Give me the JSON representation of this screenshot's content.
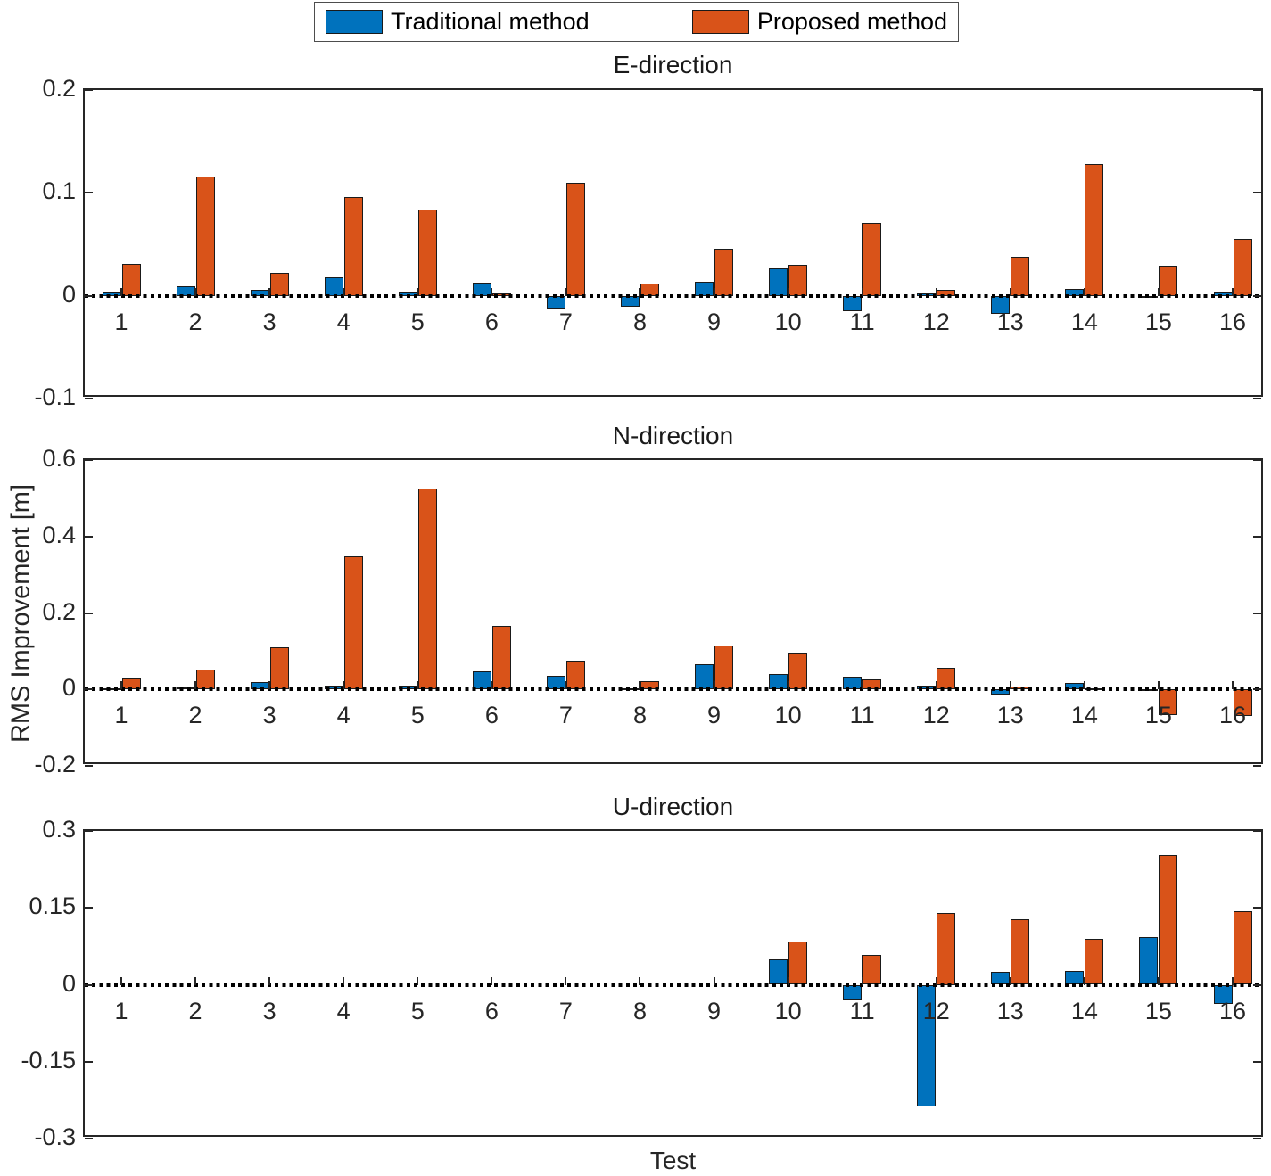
{
  "legend": {
    "items": [
      {
        "label": "Traditional method",
        "color": "#0072BD"
      },
      {
        "label": "Proposed method",
        "color": "#D95319"
      }
    ]
  },
  "ylabel": "RMS Improvement [m]",
  "xlabel": "Test",
  "chart_data": [
    {
      "type": "bar",
      "title": "E-direction",
      "categories": [
        "1",
        "2",
        "3",
        "4",
        "5",
        "6",
        "7",
        "8",
        "9",
        "10",
        "11",
        "12",
        "13",
        "14",
        "15",
        "16"
      ],
      "series": [
        {
          "name": "Traditional method",
          "values": [
            0.003,
            0.009,
            0.006,
            0.018,
            0.003,
            0.013,
            -0.013,
            -0.011,
            0.014,
            0.027,
            -0.015,
            0.002,
            -0.018,
            0.007,
            -0.002,
            0.003
          ]
        },
        {
          "name": "Proposed method",
          "values": [
            0.031,
            0.116,
            0.022,
            0.096,
            0.084,
            0.002,
            0.11,
            0.012,
            0.046,
            0.03,
            0.071,
            0.006,
            0.038,
            0.128,
            0.029,
            0.055
          ]
        }
      ],
      "ylim": [
        -0.1,
        0.2
      ],
      "yticks": [
        0.2,
        0.1,
        0,
        -0.1
      ],
      "ytick_labels": [
        "0.2",
        "0.1",
        "0",
        "-0.1"
      ],
      "grid": false,
      "zero_line": "dotted"
    },
    {
      "type": "bar",
      "title": "N-direction",
      "categories": [
        "1",
        "2",
        "3",
        "4",
        "5",
        "6",
        "7",
        "8",
        "9",
        "10",
        "11",
        "12",
        "13",
        "14",
        "15",
        "16"
      ],
      "series": [
        {
          "name": "Traditional method",
          "values": [
            0.004,
            0.005,
            0.02,
            0.01,
            0.009,
            0.047,
            0.036,
            0.002,
            0.067,
            0.04,
            0.034,
            0.01,
            -0.014,
            0.018,
            -0.004,
            0.001
          ]
        },
        {
          "name": "Proposed method",
          "values": [
            0.029,
            0.052,
            0.11,
            0.347,
            0.525,
            0.166,
            0.075,
            0.022,
            0.114,
            0.096,
            0.026,
            0.057,
            0.008,
            0.004,
            -0.066,
            -0.07
          ]
        }
      ],
      "ylim": [
        -0.2,
        0.6
      ],
      "yticks": [
        0.6,
        0.4,
        0.2,
        0,
        -0.2
      ],
      "ytick_labels": [
        "0.6",
        "0.4",
        "0.2",
        "0",
        "-0.2"
      ],
      "grid": false,
      "zero_line": "dotted"
    },
    {
      "type": "bar",
      "title": "U-direction",
      "categories": [
        "1",
        "2",
        "3",
        "4",
        "5",
        "6",
        "7",
        "8",
        "9",
        "10",
        "11",
        "12",
        "13",
        "14",
        "15",
        "16"
      ],
      "series": [
        {
          "name": "Traditional method",
          "values": [
            0,
            0,
            0,
            0,
            0,
            0,
            0,
            0,
            0,
            0.049,
            -0.03,
            -0.237,
            0.026,
            0.027,
            0.093,
            -0.038
          ]
        },
        {
          "name": "Proposed method",
          "values": [
            0,
            0,
            0,
            0,
            0,
            0,
            0,
            0,
            0,
            0.084,
            0.059,
            0.14,
            0.127,
            0.089,
            0.253,
            0.144
          ]
        }
      ],
      "ylim": [
        -0.3,
        0.3
      ],
      "yticks": [
        0.3,
        0.15,
        0,
        -0.15,
        -0.3
      ],
      "ytick_labels": [
        "0.3",
        "0.15",
        "0",
        "-0.15",
        "-0.3"
      ],
      "grid": false,
      "zero_line": "dotted"
    }
  ]
}
